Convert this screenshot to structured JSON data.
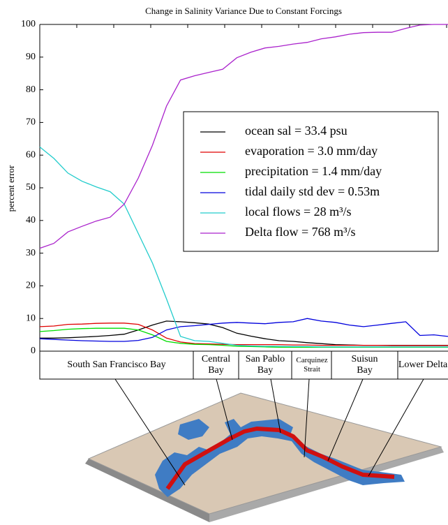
{
  "chart_data": {
    "type": "line",
    "title": "Change in Salinity Variance Due to Constant Forcings",
    "ylabel": "percent error",
    "categories": [
      null,
      null,
      null,
      null,
      null,
      null,
      null,
      null,
      null,
      null,
      null,
      null,
      null,
      null,
      null,
      null,
      null,
      null,
      null,
      null,
      null,
      null,
      null,
      null,
      null,
      null,
      null,
      null,
      null,
      null
    ],
    "series": [
      {
        "name": "ocean sal = 33.4 psu",
        "color": "#000000",
        "values": [
          4,
          4,
          4.1,
          4.3,
          4.5,
          4.8,
          5.2,
          6.5,
          8,
          9.2,
          9,
          8.7,
          8.3,
          7.2,
          5.5,
          4.6,
          3.8,
          3.2,
          3,
          2.6,
          2.3,
          2,
          1.9,
          1.8,
          1.8,
          1.8,
          1.8,
          1.8,
          1.8,
          1.8
        ]
      },
      {
        "name": "evaporation = 3.0 mm/day",
        "color": "#e00000",
        "values": [
          7.5,
          7.7,
          8.2,
          8.3,
          8.5,
          8.6,
          8.6,
          8.2,
          6.5,
          4,
          2.8,
          2.3,
          2.2,
          2.1,
          2,
          2,
          2,
          2,
          1.9,
          1.9,
          1.8,
          1.8,
          1.8,
          1.8,
          1.8,
          1.7,
          1.7,
          1.7,
          1.7,
          1.7
        ]
      },
      {
        "name": "precipitation = 1.4 mm/day",
        "color": "#00dd00",
        "values": [
          6,
          6.3,
          6.7,
          6.9,
          7,
          7,
          7,
          6.5,
          5,
          3,
          2.4,
          2.1,
          2,
          1.8,
          1.5,
          1.4,
          1.3,
          1.2,
          1.2,
          1.2,
          1.2,
          1.2,
          1.2,
          1.2,
          1.2,
          1.2,
          1.2,
          1.2,
          1.2,
          1.2
        ]
      },
      {
        "name": "tidal daily std dev = 0.53m",
        "color": "#0000dd",
        "values": [
          3.8,
          3.6,
          3.4,
          3.2,
          3.1,
          3,
          3,
          3.3,
          4.2,
          6.5,
          7.5,
          7.8,
          8.2,
          8.6,
          8.8,
          8.6,
          8.4,
          8.8,
          9,
          10,
          9.2,
          8.8,
          8,
          7.5,
          8,
          8.5,
          9,
          4.8,
          5,
          4.5
        ]
      },
      {
        "name": "local flows = 28 m³/s",
        "color": "#22cccc",
        "values": [
          62.5,
          59,
          54.5,
          52,
          50.3,
          48.8,
          45,
          36,
          27,
          16,
          4.5,
          3.2,
          3,
          2.4,
          1.8,
          1.6,
          1.5,
          1.5,
          1.4,
          1.4,
          1.3,
          1.3,
          1.3,
          1.3,
          1.3,
          1.3,
          1.3,
          1.3,
          1.3,
          1.3
        ]
      },
      {
        "name": "Delta flow = 768 m³/s",
        "color": "#aa22cc",
        "values": [
          31.5,
          33,
          36.5,
          38.2,
          39.8,
          41,
          45,
          53,
          63,
          75,
          83,
          84.3,
          85.3,
          86.3,
          89.8,
          91.5,
          92.8,
          93.3,
          94,
          94.5,
          95.6,
          96.2,
          97,
          97.5,
          97.6,
          97.6,
          98.8,
          99.8,
          100,
          100
        ]
      }
    ],
    "ylim": [
      0,
      100
    ],
    "yticks": [
      0,
      10,
      20,
      30,
      40,
      50,
      60,
      70,
      80,
      90,
      100
    ],
    "legend": "right",
    "regions": [
      "South San Francisco Bay",
      "Central Bay",
      "San Pablo Bay",
      "Carquinez Strait",
      "Suisun Bay",
      "Lower Delta"
    ]
  }
}
